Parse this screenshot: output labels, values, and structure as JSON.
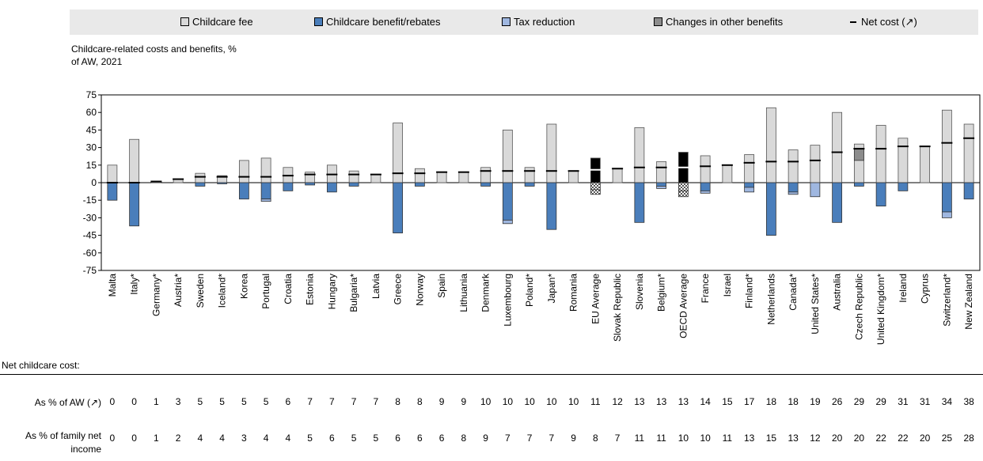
{
  "legend": {
    "fee": "Childcare fee",
    "benefit": "Childcare benefit/rebates",
    "tax": "Tax reduction",
    "other": "Changes in other benefits",
    "net": "Net cost (↗)"
  },
  "y_axis_label": "Childcare-related costs and benefits, % of AW, 2021",
  "table": {
    "title": "Net childcare cost:",
    "row1_label": "As % of AW  (↗)",
    "row2_label": "As % of family net income"
  },
  "colors": {
    "fee": "#d9d9d9",
    "benefit": "#4a7ebb",
    "tax": "#9fb7e0",
    "other": "#8c8c8c",
    "avg_bar": "#000000"
  },
  "chart_data": {
    "type": "bar",
    "title": "",
    "ylabel": "Childcare-related costs and benefits, % of AW, 2021",
    "ylim": [
      -75,
      75
    ],
    "yticks": [
      75,
      60,
      45,
      30,
      15,
      0,
      -15,
      -30,
      -45,
      -60,
      -75
    ],
    "grid": false,
    "legend_position": "top",
    "categories": [
      "Malta",
      "Italy*",
      "Germany*",
      "Austria*",
      "Sweden",
      "Iceland*",
      "Korea",
      "Portugal",
      "Croatia",
      "Estonia",
      "Hungary",
      "Bulgaria*",
      "Latvia",
      "Greece",
      "Norway",
      "Spain",
      "Lithuania",
      "Denmark",
      "Luxembourg",
      "Poland*",
      "Japan*",
      "Romania",
      "EU Average",
      "Slovak Republic",
      "Slovenia",
      "Belgium*",
      "OECD Average",
      "France",
      "Israel",
      "Finland*",
      "Netherlands",
      "Canada*",
      "United States*",
      "Australia",
      "Czech Republic",
      "United Kingdom*",
      "Ireland",
      "Cyprus",
      "Switzerland*",
      "New Zealand"
    ],
    "average_categories": [
      "EU Average",
      "OECD Average"
    ],
    "series": [
      {
        "name": "Childcare fee",
        "values": [
          15,
          37,
          1,
          3,
          8,
          6,
          19,
          21,
          13,
          9,
          15,
          10,
          7,
          51,
          12,
          9,
          9,
          13,
          45,
          13,
          50,
          10,
          21,
          12,
          47,
          18,
          26,
          23,
          15,
          24,
          64,
          28,
          32,
          60,
          33,
          49,
          38,
          31,
          62,
          50
        ]
      },
      {
        "name": "Childcare benefit/rebates",
        "values": [
          -15,
          -37,
          0,
          0,
          -3,
          -1,
          -14,
          -14,
          -7,
          -2,
          -8,
          -3,
          0,
          -43,
          -3,
          0,
          0,
          -3,
          -32,
          -3,
          -40,
          0,
          -6,
          0,
          -34,
          -3,
          -7,
          -7,
          0,
          -4,
          -45,
          -8,
          0,
          -34,
          -3,
          -20,
          -7,
          0,
          -25,
          -14
        ]
      },
      {
        "name": "Tax reduction",
        "values": [
          0,
          0,
          0,
          0,
          0,
          0,
          0,
          -2,
          0,
          0,
          0,
          0,
          0,
          0,
          0,
          0,
          0,
          0,
          -3,
          0,
          0,
          0,
          0,
          0,
          0,
          -2,
          0,
          -2,
          0,
          -4,
          0,
          -2,
          -12,
          0,
          0,
          0,
          0,
          0,
          -5,
          0
        ]
      },
      {
        "name": "Changes in other benefits",
        "values": [
          0,
          0,
          0,
          0,
          0,
          0,
          0,
          0,
          0,
          0,
          0,
          0,
          0,
          0,
          0,
          0,
          0,
          0,
          0,
          0,
          0,
          0,
          -4,
          0,
          0,
          0,
          -5,
          0,
          0,
          0,
          0,
          0,
          0,
          0,
          10,
          0,
          0,
          0,
          0,
          0
        ]
      },
      {
        "name": "Net cost (↗)",
        "values": [
          0,
          0,
          1,
          3,
          5,
          5,
          5,
          5,
          6,
          7,
          7,
          7,
          7,
          8,
          8,
          9,
          9,
          10,
          10,
          10,
          10,
          10,
          11,
          12,
          13,
          13,
          13,
          14,
          15,
          17,
          18,
          18,
          19,
          26,
          29,
          29,
          31,
          31,
          34,
          38
        ]
      }
    ],
    "table_rows": [
      {
        "label": "As % of AW  (↗)",
        "values": [
          "0",
          "0",
          "1",
          "3",
          "5",
          "5",
          "5",
          "5",
          "6",
          "7",
          "7",
          "7",
          "7",
          "8",
          "8",
          "9",
          "9",
          "10",
          "10",
          "10",
          "10",
          "10",
          "11",
          "12",
          "13",
          "13",
          "13",
          "14",
          "15",
          "17",
          "18",
          "18",
          "19",
          "26",
          "29",
          "29",
          "31",
          "31",
          "34",
          "38"
        ]
      },
      {
        "label": "As % of family net income",
        "values": [
          "0",
          "0",
          "1",
          "2",
          "4",
          "4",
          "3",
          "4",
          "4",
          "5",
          "6",
          "5",
          "5",
          "6",
          "6",
          "6",
          "8",
          "9",
          "7",
          "7",
          "7",
          "9",
          "8",
          "7",
          "11",
          "11",
          "10",
          "10",
          "11",
          "13",
          "15",
          "13",
          "12",
          "20",
          "20",
          "22",
          "22",
          "20",
          "25",
          "28"
        ]
      }
    ]
  }
}
